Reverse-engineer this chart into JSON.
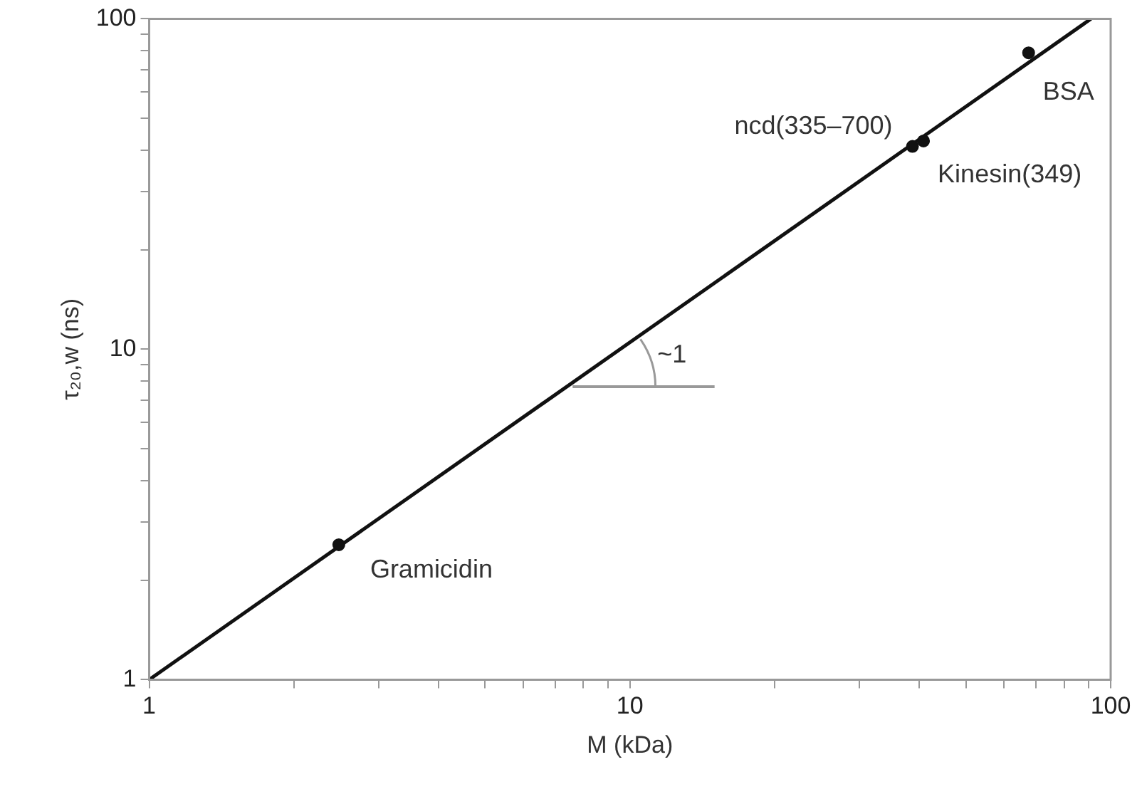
{
  "chart_data": {
    "type": "scatter",
    "xlabel": "M (kDa)",
    "ylabel": "τ₂₀,w (ns)",
    "log": "xy",
    "xlim": [
      1,
      100
    ],
    "ylim": [
      1,
      100
    ],
    "xticks": [
      1,
      {
        "value": 2,
        "label": null
      },
      {
        "value": 3,
        "label": null
      },
      {
        "value": 4,
        "label": null
      },
      {
        "value": 5,
        "label": null
      },
      {
        "value": 6,
        "label": null
      },
      {
        "value": 7,
        "label": null
      },
      {
        "value": 8,
        "label": null
      },
      {
        "value": 9,
        "label": null
      },
      10,
      {
        "value": 20,
        "label": null
      },
      {
        "value": 30,
        "label": null
      },
      {
        "value": 40,
        "label": null
      },
      {
        "value": 50,
        "label": null
      },
      {
        "value": 60,
        "label": null
      },
      {
        "value": 70,
        "label": null
      },
      {
        "value": 80,
        "label": null
      },
      {
        "value": 90,
        "label": null
      },
      100
    ],
    "yticks": [
      1,
      {
        "value": 2,
        "label": null
      },
      {
        "value": 3,
        "label": null
      },
      {
        "value": 4,
        "label": null
      },
      {
        "value": 5,
        "label": null
      },
      {
        "value": 6,
        "label": null
      },
      {
        "value": 7,
        "label": null
      },
      {
        "value": 8,
        "label": null
      },
      {
        "value": 9,
        "label": null
      },
      10,
      {
        "value": 20,
        "label": null
      },
      {
        "value": 30,
        "label": null
      },
      {
        "value": 40,
        "label": null
      },
      {
        "value": 50,
        "label": null
      },
      {
        "value": 60,
        "label": null
      },
      {
        "value": 70,
        "label": null
      },
      {
        "value": 80,
        "label": null
      },
      {
        "value": 90,
        "label": null
      },
      100
    ],
    "grid": false,
    "legend": false,
    "marker": "circle",
    "series": [
      {
        "color": "#111111",
        "x": [
          2.48,
          38.7,
          40.8,
          67.5
        ],
        "values": [
          2.56,
          41.1,
          42.7,
          78.9
        ]
      },
      {
        "type": "line",
        "color": "#111111",
        "line_style": "solid",
        "marker": "none",
        "x": [
          1,
          91
        ],
        "values": [
          1,
          100
        ]
      }
    ],
    "annotations": [
      {
        "text": "Gramicidin",
        "x": 2.48,
        "y": 2.56
      },
      {
        "text": "ncd(335–700)",
        "x": 38.7,
        "y": 41.1
      },
      {
        "text": "Kinesin(349)",
        "x": 40.8,
        "y": 42.7
      },
      {
        "text": "BSA",
        "x": 67.5,
        "y": 78.9
      },
      "~1"
    ]
  }
}
